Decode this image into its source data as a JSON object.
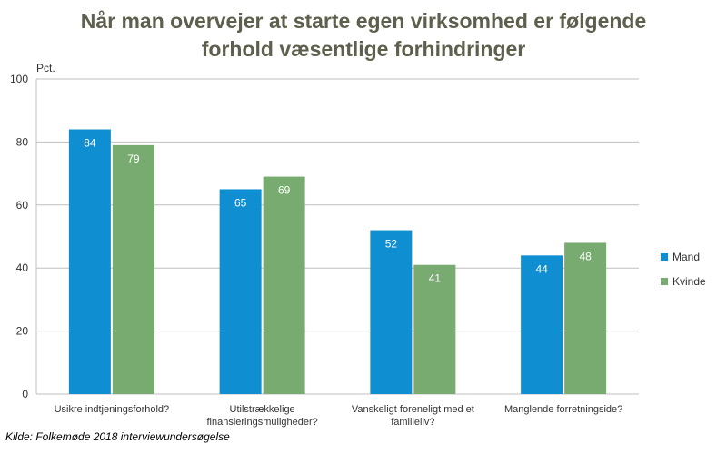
{
  "title": [
    "Når man overvejer at starte egen virksomhed er følgende",
    "forhold væsentlige forhindringer"
  ],
  "source": "Kilde: Folkemøde 2018 interviewundersøgelse",
  "colors": {
    "mand": "#0f8fd1",
    "kvinde": "#77ab6f",
    "grid": "#bfbfbf",
    "axis_text": "#333333"
  },
  "chart_data": {
    "type": "bar",
    "categories": [
      [
        "Usikre indtjeningsforhold?"
      ],
      [
        "Utilstrækkelige",
        "finansieringsmuligheder?"
      ],
      [
        "Vanskeligt foreneligt med et",
        "familieliv?"
      ],
      [
        "Manglende forretningside?"
      ]
    ],
    "series": [
      {
        "name": "Mand",
        "values": [
          84,
          65,
          52,
          44
        ],
        "labels": [
          "84",
          "65",
          "52",
          "44"
        ]
      },
      {
        "name": "Kvinde",
        "values": [
          79,
          69,
          41,
          48
        ],
        "labels": [
          "79",
          "69",
          "41",
          "48"
        ]
      }
    ],
    "ylabel": "Pct.",
    "ylim": [
      0,
      100
    ],
    "yticks": [
      0,
      20,
      40,
      60,
      80,
      100
    ],
    "grid": true,
    "legend_position": "right"
  }
}
